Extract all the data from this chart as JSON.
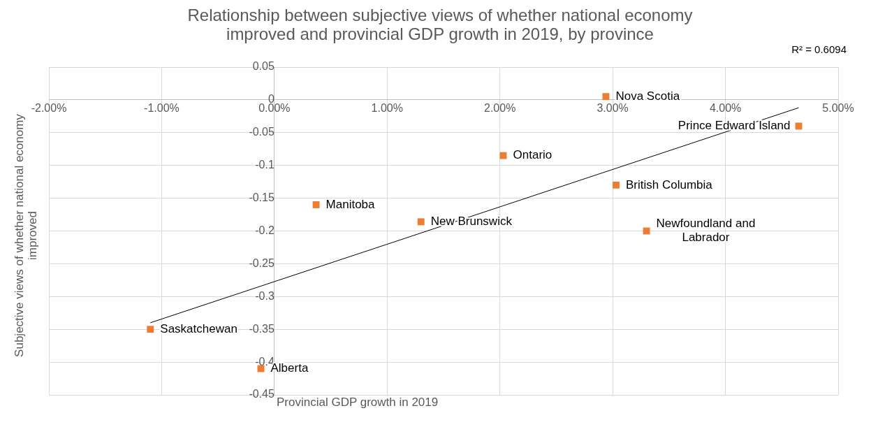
{
  "chart_data": {
    "type": "scatter",
    "title": "Relationship between subjective views of whether national economy improved and provincial GDP growth in 2019, by province",
    "xlabel": "Provincial GDP growth in 2019",
    "ylabel": "Subjective views of whether national economy improved",
    "xlim": [
      -2,
      5
    ],
    "xticks": [
      {
        "value": -2,
        "label": "-2.00%"
      },
      {
        "value": -1,
        "label": "-1.00%"
      },
      {
        "value": 0,
        "label": "0.00%"
      },
      {
        "value": 1,
        "label": "1.00%"
      },
      {
        "value": 2,
        "label": "2.00%"
      },
      {
        "value": 3,
        "label": "3.00%"
      },
      {
        "value": 4,
        "label": "4.00%"
      },
      {
        "value": 5,
        "label": "5.00%"
      }
    ],
    "ylim": [
      -0.45,
      0.05
    ],
    "yticks": [
      -0.45,
      -0.4,
      -0.35,
      -0.3,
      -0.25,
      -0.2,
      -0.15,
      -0.1,
      -0.05,
      0,
      0.05
    ],
    "grid": true,
    "legend": false,
    "series": [
      {
        "type": "scatter",
        "marker": "square",
        "color": "#ed7d31",
        "x": [
          2.94,
          4.65,
          2.03,
          3.03,
          0.37,
          1.3,
          3.3,
          -1.1,
          -0.12
        ],
        "values": [
          0.005,
          -0.04,
          -0.085,
          -0.13,
          -0.16,
          -0.186,
          -0.2,
          -0.35,
          -0.41
        ]
      },
      {
        "type": "line",
        "color": "#000000",
        "x": [
          -1.1,
          4.65
        ],
        "values": [
          -0.34,
          -0.012
        ]
      }
    ],
    "annotations": [
      {
        "text": "Nova Scotia",
        "x": 2.94,
        "y": 0.005
      },
      {
        "text": "Prince Edward Island",
        "x": 4.65,
        "y": -0.04
      },
      {
        "text": "Ontario",
        "x": 2.03,
        "y": -0.085
      },
      {
        "text": "British Columbia",
        "x": 3.03,
        "y": -0.13
      },
      {
        "text": "Manitoba",
        "x": 0.37,
        "y": -0.16
      },
      {
        "text": "New Brunswick",
        "x": 1.3,
        "y": -0.186
      },
      {
        "text": "Newfoundland and Labrador",
        "x": 3.3,
        "y": -0.2
      },
      {
        "text": "Saskatchewan",
        "x": -1.1,
        "y": -0.35
      },
      {
        "text": "Alberta",
        "x": -0.12,
        "y": -0.41
      },
      "R² = 0.6094"
    ]
  }
}
